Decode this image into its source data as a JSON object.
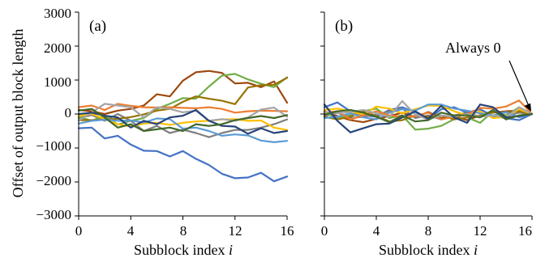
{
  "figure": {
    "ylabel": "Offset of output block length",
    "xlabel_text": "Subblock index ",
    "xlabel_var": "i",
    "xticks": [
      "0",
      "4",
      "8",
      "12",
      "16"
    ],
    "yticks": [
      "3000",
      "2000",
      "1000",
      "0",
      "−1000",
      "−2000",
      "−3000"
    ],
    "annotation": "Always 0"
  },
  "chart_data": [
    {
      "type": "line",
      "panel_label": "(a)",
      "xlabel": "Subblock index i",
      "ylabel": "Offset of output block length",
      "xlim": [
        0,
        16
      ],
      "ylim": [
        -3000,
        3000
      ],
      "grid": false,
      "x": [
        0,
        1,
        2,
        3,
        4,
        5,
        6,
        7,
        8,
        9,
        10,
        11,
        12,
        13,
        14,
        15,
        16
      ],
      "series": [
        {
          "color": "#4472c4",
          "values": [
            -420,
            -400,
            -720,
            -640,
            -900,
            -1080,
            -1090,
            -1250,
            -1090,
            -1320,
            -1500,
            -1760,
            -1890,
            -1870,
            -1730,
            -1980,
            -1840
          ]
        },
        {
          "color": "#9e480e",
          "values": [
            120,
            80,
            0,
            100,
            150,
            250,
            580,
            520,
            980,
            1230,
            1270,
            1210,
            900,
            920,
            790,
            960,
            330
          ]
        },
        {
          "color": "#7f7f7f",
          "values": [
            -120,
            -30,
            -200,
            0,
            -200,
            -500,
            -350,
            -560,
            -460,
            -560,
            -680,
            -560,
            -470,
            -470,
            -400,
            -300,
            -160
          ]
        },
        {
          "color": "#70ad47",
          "values": [
            -80,
            -200,
            -50,
            -310,
            -200,
            -120,
            150,
            300,
            470,
            450,
            810,
            1130,
            1180,
            1020,
            890,
            790,
            1080
          ]
        },
        {
          "color": "#997300",
          "values": [
            -180,
            -180,
            -170,
            -140,
            -90,
            -10,
            100,
            150,
            360,
            520,
            450,
            390,
            290,
            780,
            850,
            860,
            1070
          ]
        },
        {
          "color": "#ffc000",
          "values": [
            -60,
            0,
            -150,
            -300,
            -370,
            -280,
            -260,
            -320,
            -260,
            -220,
            -200,
            -160,
            -150,
            -200,
            -190,
            -400,
            -470
          ]
        },
        {
          "color": "#5b9bd5",
          "values": [
            -280,
            -200,
            -170,
            -200,
            -190,
            -250,
            -130,
            -150,
            -430,
            -400,
            -500,
            -640,
            -600,
            -630,
            -780,
            -830,
            -790
          ]
        },
        {
          "color": "#ed7d31",
          "values": [
            200,
            250,
            120,
            300,
            240,
            200,
            190,
            200,
            180,
            170,
            200,
            150,
            40,
            80,
            100,
            90,
            80
          ]
        },
        {
          "color": "#a5a5a5",
          "values": [
            -200,
            50,
            300,
            250,
            200,
            -100,
            200,
            150,
            50,
            100,
            -200,
            -150,
            -200,
            -100,
            130,
            190,
            -80
          ]
        },
        {
          "color": "#264478",
          "values": [
            0,
            40,
            -50,
            -100,
            -400,
            -200,
            -300,
            -100,
            -50,
            120,
            -200,
            -350,
            -370,
            -580,
            -420,
            -560,
            -500
          ]
        },
        {
          "color": "#43682b",
          "values": [
            100,
            150,
            -100,
            -400,
            -300,
            -500,
            -450,
            -400,
            -500,
            -300,
            -350,
            -300,
            -180,
            -120,
            -60,
            -120,
            -30
          ]
        }
      ]
    },
    {
      "type": "line",
      "panel_label": "(b)",
      "xlabel": "Subblock index i",
      "ylabel": "",
      "xlim": [
        0,
        16
      ],
      "ylim": [
        -3000,
        3000
      ],
      "grid": false,
      "x": [
        0,
        1,
        2,
        3,
        4,
        5,
        6,
        7,
        8,
        9,
        10,
        11,
        12,
        13,
        14,
        15,
        16
      ],
      "series": [
        {
          "color": "#4472c4",
          "values": [
            200,
            340,
            80,
            -40,
            -80,
            120,
            200,
            60,
            -160,
            140,
            200,
            40,
            140,
            -60,
            -120,
            -180,
            0
          ]
        },
        {
          "color": "#9e480e",
          "values": [
            80,
            -60,
            -180,
            -240,
            -140,
            -60,
            40,
            -100,
            60,
            -120,
            -60,
            -180,
            -40,
            40,
            80,
            100,
            0
          ]
        },
        {
          "color": "#7f7f7f",
          "values": [
            -60,
            40,
            -120,
            -80,
            -20,
            80,
            160,
            -120,
            -40,
            -160,
            -40,
            40,
            -80,
            100,
            -60,
            40,
            0
          ]
        },
        {
          "color": "#70ad47",
          "values": [
            40,
            -120,
            -40,
            80,
            160,
            -120,
            -40,
            -460,
            -430,
            -350,
            -150,
            -100,
            -260,
            80,
            -40,
            200,
            0
          ]
        },
        {
          "color": "#997300",
          "values": [
            -80,
            -160,
            -80,
            80,
            -60,
            -220,
            -180,
            -40,
            -80,
            -40,
            -160,
            -100,
            -40,
            60,
            40,
            80,
            0
          ]
        },
        {
          "color": "#ffc000",
          "values": [
            120,
            160,
            80,
            -20,
            220,
            160,
            20,
            140,
            250,
            240,
            80,
            -40,
            80,
            -120,
            -80,
            140,
            0
          ]
        },
        {
          "color": "#5b9bd5",
          "values": [
            -120,
            -80,
            20,
            -100,
            -160,
            40,
            140,
            100,
            280,
            280,
            160,
            100,
            20,
            -40,
            60,
            -100,
            0
          ]
        },
        {
          "color": "#ed7d31",
          "values": [
            40,
            80,
            -160,
            -40,
            80,
            -40,
            -80,
            -60,
            40,
            -160,
            -80,
            -20,
            180,
            160,
            220,
            400,
            0
          ]
        },
        {
          "color": "#a5a5a5",
          "values": [
            60,
            20,
            60,
            120,
            20,
            -80,
            380,
            -20,
            -160,
            -40,
            -80,
            0,
            -80,
            -40,
            -100,
            200,
            0
          ]
        },
        {
          "color": "#264478",
          "values": [
            280,
            -200,
            -540,
            -420,
            -300,
            -280,
            -100,
            80,
            -140,
            240,
            -100,
            -260,
            280,
            200,
            -100,
            -60,
            0
          ]
        },
        {
          "color": "#43682b",
          "values": [
            -20,
            80,
            120,
            40,
            -80,
            -240,
            -40,
            -220,
            -180,
            40,
            -40,
            -40,
            -100,
            120,
            -160,
            -40,
            0
          ]
        }
      ]
    }
  ]
}
